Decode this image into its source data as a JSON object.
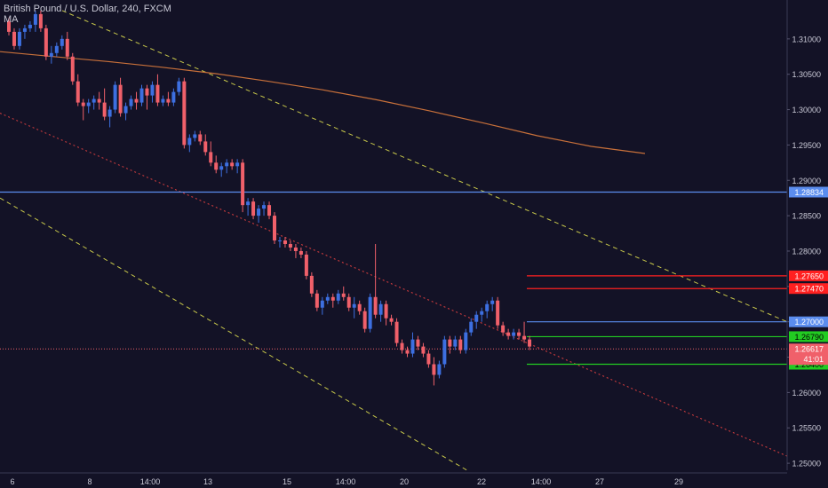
{
  "header": {
    "symbol_title": "British Pound / U.S. Dollar, 240, FXCM",
    "indicator": "MA"
  },
  "colors": {
    "background": "#131226",
    "grid": "#1f1e38",
    "axis_text": "#c9c9d6",
    "up_candle": "#3d6fe0",
    "down_candle": "#f0606a",
    "ma_line": "#c8703a",
    "channel_yellow": "#c8c84a",
    "channel_red": "#e04040",
    "level_blue": "#5b8def",
    "level_red": "#ff2020",
    "level_green": "#22cc22",
    "price_line": "#f0606a"
  },
  "chart_data": {
    "type": "candlestick",
    "title": "British Pound / U.S. Dollar, 240, FXCM",
    "ylim": [
      1.2465,
      1.3155
    ],
    "y_ticks": [
      "1.31000",
      "1.30500",
      "1.30000",
      "1.29500",
      "1.29000",
      "1.28500",
      "1.28000",
      "1.27500",
      "1.27000",
      "1.26500",
      "1.26000",
      "1.25500",
      "1.25000"
    ],
    "x_labels": [
      "6",
      "8",
      "14:00",
      "13",
      "15",
      "14:00",
      "20",
      "22",
      "14:00",
      "27",
      "29"
    ],
    "grid": false,
    "candles": [
      [
        1.3125,
        1.313,
        1.3105,
        1.311
      ],
      [
        1.311,
        1.3115,
        1.3085,
        1.309
      ],
      [
        1.309,
        1.3115,
        1.3085,
        1.311
      ],
      [
        1.311,
        1.312,
        1.31,
        1.3115
      ],
      [
        1.3115,
        1.3125,
        1.311,
        1.312
      ],
      [
        1.312,
        1.314,
        1.311,
        1.3135
      ],
      [
        1.3135,
        1.314,
        1.311,
        1.3115
      ],
      [
        1.3115,
        1.312,
        1.307,
        1.3075
      ],
      [
        1.3075,
        1.309,
        1.3065,
        1.308
      ],
      [
        1.308,
        1.3095,
        1.3075,
        1.309
      ],
      [
        1.309,
        1.3105,
        1.3085,
        1.31
      ],
      [
        1.31,
        1.311,
        1.307,
        1.3075
      ],
      [
        1.3075,
        1.308,
        1.3035,
        1.304
      ],
      [
        1.304,
        1.305,
        1.3005,
        1.301
      ],
      [
        1.301,
        1.3015,
        1.2985,
        1.3005
      ],
      [
        1.3005,
        1.3015,
        1.2995,
        1.301
      ],
      [
        1.301,
        1.302,
        1.3,
        1.3015
      ],
      [
        1.3015,
        1.3025,
        1.3,
        1.301
      ],
      [
        1.301,
        1.303,
        1.2985,
        1.299
      ],
      [
        1.299,
        1.3005,
        1.2975,
        1.3
      ],
      [
        1.3,
        1.304,
        1.2995,
        1.3035
      ],
      [
        1.3035,
        1.3045,
        1.299,
        1.2995
      ],
      [
        1.2995,
        1.301,
        1.2985,
        1.3005
      ],
      [
        1.3005,
        1.302,
        1.3,
        1.3015
      ],
      [
        1.3015,
        1.3025,
        1.3,
        1.301
      ],
      [
        1.301,
        1.3035,
        1.3005,
        1.303
      ],
      [
        1.303,
        1.3035,
        1.3,
        1.302
      ],
      [
        1.302,
        1.304,
        1.301,
        1.3035
      ],
      [
        1.3035,
        1.305,
        1.3005,
        1.301
      ],
      [
        1.301,
        1.302,
        1.3005,
        1.3015
      ],
      [
        1.3015,
        1.3025,
        1.3005,
        1.301
      ],
      [
        1.301,
        1.303,
        1.3005,
        1.3025
      ],
      [
        1.3025,
        1.3045,
        1.302,
        1.304
      ],
      [
        1.304,
        1.3045,
        1.2945,
        1.295
      ],
      [
        1.295,
        1.2965,
        1.294,
        1.296
      ],
      [
        1.296,
        1.297,
        1.2955,
        1.2965
      ],
      [
        1.2965,
        1.297,
        1.295,
        1.2955
      ],
      [
        1.2955,
        1.2965,
        1.2935,
        1.294
      ],
      [
        1.294,
        1.2955,
        1.292,
        1.2925
      ],
      [
        1.2925,
        1.2935,
        1.291,
        1.2915
      ],
      [
        1.2915,
        1.2925,
        1.2905,
        1.292
      ],
      [
        1.292,
        1.293,
        1.291,
        1.2925
      ],
      [
        1.2925,
        1.293,
        1.2915,
        1.292
      ],
      [
        1.292,
        1.293,
        1.291,
        1.2925
      ],
      [
        1.2925,
        1.293,
        1.2855,
        1.2865
      ],
      [
        1.2865,
        1.2875,
        1.285,
        1.287
      ],
      [
        1.287,
        1.2875,
        1.2845,
        1.285
      ],
      [
        1.285,
        1.2865,
        1.284,
        1.286
      ],
      [
        1.286,
        1.287,
        1.285,
        1.2865
      ],
      [
        1.2865,
        1.287,
        1.2845,
        1.285
      ],
      [
        1.285,
        1.2855,
        1.281,
        1.2815
      ],
      [
        1.2815,
        1.282,
        1.2805,
        1.2815
      ],
      [
        1.2815,
        1.282,
        1.2805,
        1.281
      ],
      [
        1.281,
        1.2815,
        1.28,
        1.2805
      ],
      [
        1.2805,
        1.281,
        1.279,
        1.28
      ],
      [
        1.28,
        1.2805,
        1.279,
        1.2795
      ],
      [
        1.2795,
        1.28,
        1.276,
        1.2765
      ],
      [
        1.2765,
        1.277,
        1.2735,
        1.274
      ],
      [
        1.274,
        1.2745,
        1.2715,
        1.272
      ],
      [
        1.272,
        1.2735,
        1.271,
        1.273
      ],
      [
        1.273,
        1.274,
        1.2725,
        1.2735
      ],
      [
        1.2735,
        1.274,
        1.272,
        1.273
      ],
      [
        1.273,
        1.2745,
        1.2725,
        1.274
      ],
      [
        1.274,
        1.275,
        1.273,
        1.2735
      ],
      [
        1.2735,
        1.274,
        1.2715,
        1.272
      ],
      [
        1.272,
        1.2735,
        1.2705,
        1.2725
      ],
      [
        1.2725,
        1.273,
        1.271,
        1.2715
      ],
      [
        1.2715,
        1.272,
        1.2685,
        1.269
      ],
      [
        1.269,
        1.274,
        1.2685,
        1.2735
      ],
      [
        1.2735,
        1.281,
        1.2705,
        1.271
      ],
      [
        1.271,
        1.273,
        1.27,
        1.2725
      ],
      [
        1.2725,
        1.273,
        1.2695,
        1.2705
      ],
      [
        1.2705,
        1.271,
        1.2695,
        1.27
      ],
      [
        1.27,
        1.2705,
        1.2665,
        1.267
      ],
      [
        1.267,
        1.2675,
        1.2655,
        1.266
      ],
      [
        1.266,
        1.2665,
        1.265,
        1.2655
      ],
      [
        1.2655,
        1.2685,
        1.265,
        1.2675
      ],
      [
        1.2675,
        1.268,
        1.266,
        1.2665
      ],
      [
        1.2665,
        1.267,
        1.265,
        1.2655
      ],
      [
        1.2655,
        1.266,
        1.2635,
        1.264
      ],
      [
        1.264,
        1.265,
        1.261,
        1.2625
      ],
      [
        1.2625,
        1.2645,
        1.262,
        1.264
      ],
      [
        1.264,
        1.268,
        1.2635,
        1.2675
      ],
      [
        1.2675,
        1.268,
        1.2655,
        1.2665
      ],
      [
        1.2665,
        1.268,
        1.266,
        1.2675
      ],
      [
        1.2675,
        1.268,
        1.2655,
        1.266
      ],
      [
        1.266,
        1.269,
        1.2655,
        1.2685
      ],
      [
        1.2685,
        1.2705,
        1.268,
        1.27
      ],
      [
        1.27,
        1.2715,
        1.269,
        1.271
      ],
      [
        1.271,
        1.272,
        1.27,
        1.2715
      ],
      [
        1.2715,
        1.273,
        1.2705,
        1.2725
      ],
      [
        1.2725,
        1.2735,
        1.2715,
        1.273
      ],
      [
        1.273,
        1.2735,
        1.269,
        1.2695
      ],
      [
        1.2695,
        1.27,
        1.268,
        1.2685
      ],
      [
        1.2685,
        1.269,
        1.2675,
        1.268
      ],
      [
        1.268,
        1.269,
        1.2675,
        1.2685
      ],
      [
        1.2685,
        1.269,
        1.2675,
        1.268
      ],
      [
        1.268,
        1.27,
        1.267,
        1.2675
      ],
      [
        1.2675,
        1.268,
        1.266,
        1.2665
      ]
    ],
    "moving_average": [
      1.3082,
      1.3075,
      1.3068,
      1.306,
      1.3051,
      1.304,
      1.3028,
      1.3014,
      1.2998,
      1.2981,
      1.2963,
      1.2948,
      1.2938
    ],
    "horizontal_levels": [
      {
        "price": 1.28834,
        "label": "1.28834",
        "color": "blue"
      },
      {
        "price": 1.2765,
        "label": "1.27650",
        "color": "red"
      },
      {
        "price": 1.2747,
        "label": "1.27470",
        "color": "red"
      },
      {
        "price": 1.27,
        "label": "1.27000",
        "color": "blue"
      },
      {
        "price": 1.2679,
        "label": "1.26790",
        "color": "green"
      },
      {
        "price": 1.264,
        "label": "1.26400",
        "color": "green"
      }
    ],
    "current_price": {
      "price": 1.26617,
      "label": "1.26617",
      "timer": "41:01"
    },
    "trendlines": [
      {
        "style": "dashed",
        "color": "yellow",
        "from": [
          1.314,
          1.314
        ],
        "to": [
          1.27,
          1.27
        ]
      },
      {
        "style": "dotted",
        "color": "red",
        "from": [
          1.2995,
          1.2995
        ],
        "to": [
          1.251,
          1.251
        ]
      },
      {
        "style": "dashed",
        "color": "yellow",
        "from": [
          1.2875,
          1.2875
        ],
        "to": [
          1.2465,
          1.2465
        ]
      }
    ]
  }
}
